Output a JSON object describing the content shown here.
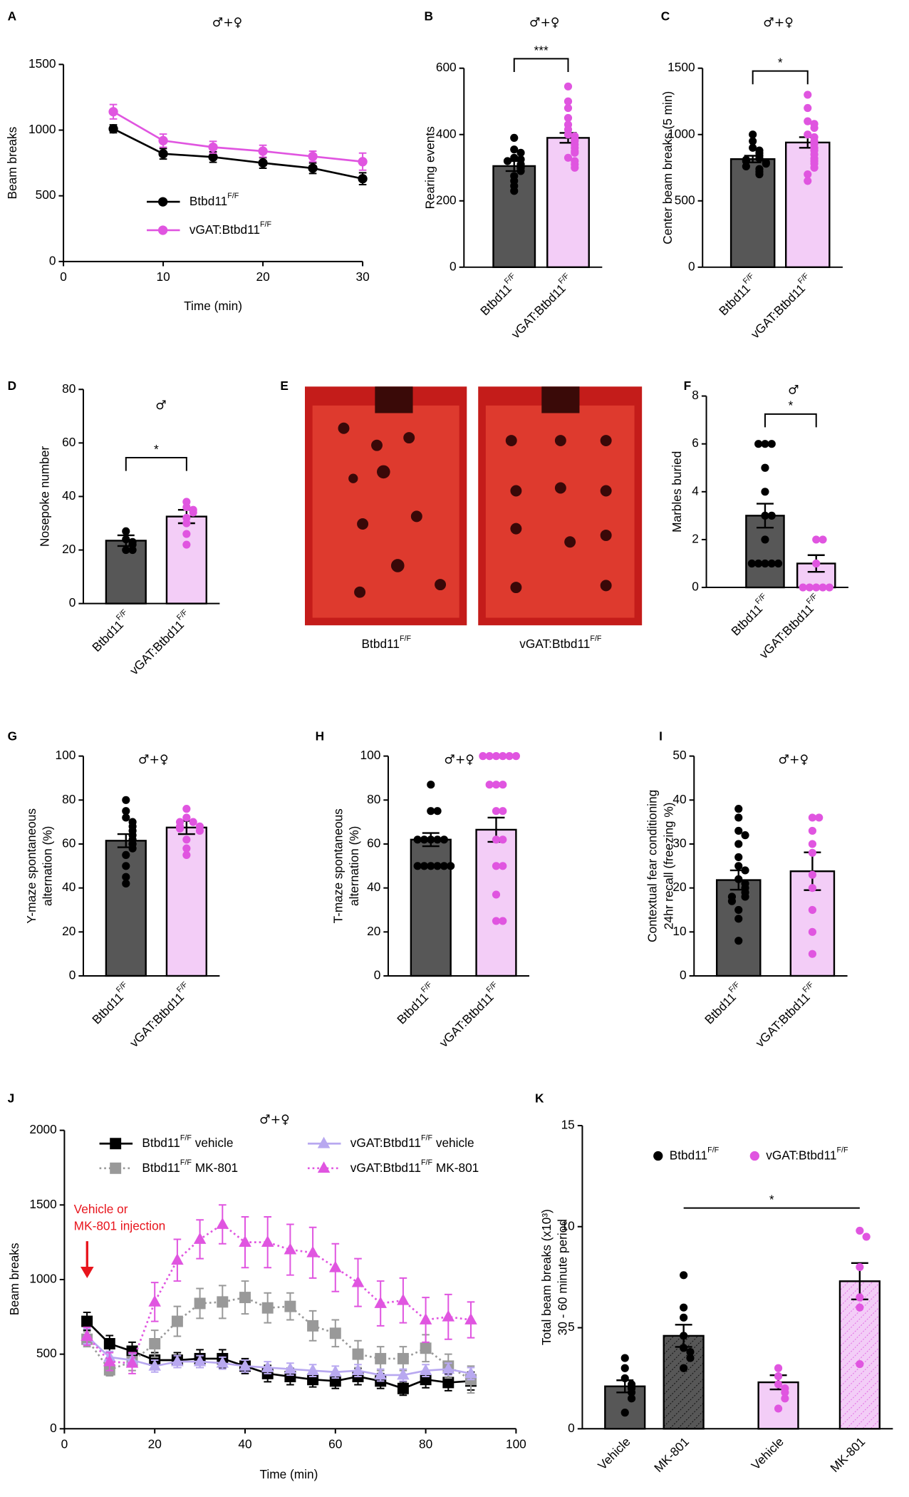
{
  "chart_data": [
    {
      "type": "line",
      "panel": "A",
      "sex": "♂+♀",
      "x_label": "Time (min)",
      "y_label": "Beam breaks",
      "x": [
        5,
        10,
        15,
        20,
        25,
        30
      ],
      "xlim": [
        0,
        30
      ],
      "xticks": [
        0,
        10,
        20,
        30
      ],
      "ylim": [
        0,
        1500
      ],
      "yticks": [
        0,
        500,
        1000,
        1500
      ],
      "series": [
        {
          "name": {
            "text": "Btbd11",
            "sup": "F/F"
          },
          "color": "#000000",
          "marker": "circle",
          "linestyle": "solid",
          "values": [
            1010,
            820,
            795,
            750,
            710,
            630
          ],
          "errors": [
            30,
            40,
            40,
            40,
            40,
            45
          ]
        },
        {
          "name": {
            "text": "vGAT:Btbd11",
            "sup": "F/F"
          },
          "color": "#e055e0",
          "marker": "circle",
          "linestyle": "solid",
          "values": [
            1140,
            920,
            870,
            840,
            800,
            760
          ],
          "errors": [
            55,
            50,
            45,
            45,
            40,
            65
          ]
        }
      ]
    },
    {
      "type": "bar",
      "panel": "B",
      "sex": "♂+♀",
      "y_label": "Rearing events",
      "categories": [
        {
          "text": "Btbd11",
          "sup": "F/F"
        },
        {
          "text": "vGAT:Btbd11",
          "sup": "F/F"
        }
      ],
      "values": [
        305,
        390
      ],
      "errors": [
        15,
        15
      ],
      "colors": [
        "#575757",
        "#f3cdf7"
      ],
      "point_colors": [
        "#000000",
        "#e055e0"
      ],
      "points": [
        [
          390,
          355,
          345,
          330,
          325,
          320,
          310,
          300,
          290,
          275,
          260,
          245,
          230
        ],
        [
          545,
          500,
          480,
          450,
          430,
          415,
          400,
          395,
          385,
          380,
          370,
          360,
          350,
          345,
          330,
          320,
          310,
          300
        ]
      ],
      "ylim": [
        0,
        600
      ],
      "yticks": [
        0,
        200,
        400,
        600
      ],
      "significance": "***"
    },
    {
      "type": "bar",
      "panel": "C",
      "sex": "♂+♀",
      "y_label": "Center beam breaks (5 min)",
      "categories": [
        {
          "text": "Btbd11",
          "sup": "F/F"
        },
        {
          "text": "vGAT:Btbd11",
          "sup": "F/F"
        }
      ],
      "values": [
        815,
        940
      ],
      "errors": [
        25,
        40
      ],
      "colors": [
        "#575757",
        "#f3cdf7"
      ],
      "point_colors": [
        "#000000",
        "#e055e0"
      ],
      "points": [
        [
          1000,
          950,
          900,
          880,
          860,
          840,
          820,
          810,
          800,
          790,
          780,
          760,
          740,
          720,
          700
        ],
        [
          1300,
          1200,
          1100,
          1080,
          1050,
          1000,
          980,
          950,
          930,
          900,
          880,
          850,
          820,
          800,
          780,
          750,
          700,
          650
        ]
      ],
      "ylim": [
        0,
        1500
      ],
      "yticks": [
        0,
        500,
        1000,
        1500
      ],
      "significance": "*"
    },
    {
      "type": "bar",
      "panel": "D",
      "sex": "♂",
      "y_label": "Nosepoke number",
      "categories": [
        {
          "text": "Btbd11",
          "sup": "F/F"
        },
        {
          "text": "vGAT:Btbd11",
          "sup": "F/F"
        }
      ],
      "values": [
        23.5,
        32.5
      ],
      "errors": [
        2,
        2.5
      ],
      "colors": [
        "#575757",
        "#f3cdf7"
      ],
      "point_colors": [
        "#000000",
        "#e055e0"
      ],
      "points": [
        [
          27,
          24,
          23,
          22,
          20,
          20
        ],
        [
          38,
          36,
          35,
          34,
          32,
          30,
          26,
          22
        ]
      ],
      "ylim": [
        0,
        80
      ],
      "yticks": [
        0,
        20,
        40,
        60,
        80
      ],
      "significance": "*"
    },
    {
      "type": "image",
      "panel": "E",
      "captions": [
        {
          "text": "Btbd11",
          "sup": "F/F"
        },
        {
          "text": "vGAT:Btbd11",
          "sup": "F/F"
        }
      ]
    },
    {
      "type": "bar",
      "panel": "F",
      "sex": "♂",
      "y_label": "Marbles buried",
      "categories": [
        {
          "text": "Btbd11",
          "sup": "F/F"
        },
        {
          "text": "vGAT:Btbd11",
          "sup": "F/F"
        }
      ],
      "values": [
        3,
        1
      ],
      "errors": [
        0.5,
        0.35
      ],
      "colors": [
        "#575757",
        "#f3cdf7"
      ],
      "point_colors": [
        "#000000",
        "#e055e0"
      ],
      "points": [
        [
          6,
          6,
          6,
          5,
          4,
          3,
          3,
          2,
          1,
          1,
          1,
          1,
          1
        ],
        [
          2,
          2,
          1,
          0,
          0,
          0,
          0,
          0
        ]
      ],
      "ylim": [
        0,
        8
      ],
      "yticks": [
        0,
        2,
        4,
        6,
        8
      ],
      "significance": "*"
    },
    {
      "type": "bar",
      "panel": "G",
      "sex": "♂+♀",
      "y_label": [
        "Y-maze spontaneous",
        "alternation (%)"
      ],
      "categories": [
        {
          "text": "Btbd11",
          "sup": "F/F"
        },
        {
          "text": "vGAT:Btbd11",
          "sup": "F/F"
        }
      ],
      "values": [
        61.5,
        67.5
      ],
      "errors": [
        3,
        3
      ],
      "colors": [
        "#575757",
        "#f3cdf7"
      ],
      "point_colors": [
        "#000000",
        "#e055e0"
      ],
      "points": [
        [
          80,
          75,
          72,
          70,
          68,
          66,
          64,
          62,
          60,
          58,
          55,
          50,
          45,
          42
        ],
        [
          76,
          72,
          70,
          70,
          68,
          68,
          67,
          66,
          62,
          58,
          55
        ]
      ],
      "ylim": [
        0,
        100
      ],
      "yticks": [
        0,
        20,
        40,
        60,
        80,
        100
      ]
    },
    {
      "type": "bar",
      "panel": "H",
      "sex": "♂+♀",
      "y_label": [
        "T-maze spontaneous",
        "alternation (%)"
      ],
      "categories": [
        {
          "text": "Btbd11",
          "sup": "F/F"
        },
        {
          "text": "vGAT:Btbd11",
          "sup": "F/F"
        }
      ],
      "values": [
        62,
        66.5
      ],
      "errors": [
        3,
        5.5
      ],
      "colors": [
        "#575757",
        "#f3cdf7"
      ],
      "point_colors": [
        "#000000",
        "#e055e0"
      ],
      "points": [
        [
          87,
          75,
          75,
          62,
          62,
          62,
          62,
          62,
          50,
          50,
          50,
          50,
          50,
          50
        ],
        [
          100,
          100,
          100,
          100,
          100,
          100,
          87,
          87,
          87,
          75,
          75,
          62,
          62,
          50,
          50,
          37,
          25,
          25
        ]
      ],
      "ylim": [
        0,
        100
      ],
      "yticks": [
        0,
        20,
        40,
        60,
        80,
        100
      ]
    },
    {
      "type": "bar",
      "panel": "I",
      "sex": "♂+♀",
      "y_label": [
        "Contextual fear conditioning",
        "24hr recall (freezing %)"
      ],
      "categories": [
        {
          "text": "Btbd11",
          "sup": "F/F"
        },
        {
          "text": "vGAT:Btbd11",
          "sup": "F/F"
        }
      ],
      "values": [
        21.8,
        23.8
      ],
      "errors": [
        2.2,
        4.3
      ],
      "colors": [
        "#575757",
        "#f3cdf7"
      ],
      "point_colors": [
        "#000000",
        "#e055e0"
      ],
      "points": [
        [
          38,
          36,
          33,
          32,
          30,
          27,
          25,
          24,
          22,
          21,
          20,
          19,
          18,
          18,
          17,
          15,
          13,
          8
        ],
        [
          36,
          36,
          33,
          30,
          28,
          23,
          20,
          15,
          10,
          5
        ]
      ],
      "ylim": [
        0,
        50
      ],
      "yticks": [
        0,
        10,
        20,
        30,
        40,
        50
      ]
    },
    {
      "type": "line",
      "panel": "J",
      "sex": "♂+♀",
      "x_label": "Time (min)",
      "y_label": "Beam breaks",
      "annotation": [
        "Vehicle or",
        "MK-801 injection"
      ],
      "annotation_color": "#e8141c",
      "x": [
        5,
        10,
        15,
        20,
        25,
        30,
        35,
        40,
        45,
        50,
        55,
        60,
        65,
        70,
        75,
        80,
        85,
        90
      ],
      "xlim": [
        0,
        100
      ],
      "xticks": [
        0,
        20,
        40,
        60,
        80,
        100
      ],
      "ylim": [
        0,
        2000
      ],
      "yticks": [
        0,
        500,
        1000,
        1500,
        2000
      ],
      "series": [
        {
          "name": {
            "text": "Btbd11",
            "sup": "F/F",
            "after": " vehicle"
          },
          "color": "#000000",
          "marker": "square",
          "linestyle": "solid",
          "values": [
            720,
            570,
            520,
            460,
            460,
            470,
            470,
            420,
            370,
            350,
            330,
            320,
            350,
            320,
            270,
            330,
            310,
            320
          ],
          "errors": [
            60,
            55,
            60,
            50,
            50,
            60,
            60,
            50,
            55,
            55,
            50,
            50,
            55,
            50,
            45,
            55,
            55,
            60
          ]
        },
        {
          "name": {
            "text": "Btbd11",
            "sup": "F/F",
            "after": " MK-801"
          },
          "color": "#999999",
          "marker": "square",
          "linestyle": "dotted",
          "values": [
            600,
            395,
            450,
            570,
            720,
            840,
            850,
            880,
            810,
            820,
            690,
            640,
            500,
            470,
            470,
            540,
            420,
            330
          ],
          "errors": [
            50,
            40,
            60,
            90,
            100,
            100,
            110,
            110,
            100,
            90,
            100,
            90,
            90,
            80,
            80,
            90,
            80,
            90
          ]
        },
        {
          "name": {
            "text": "vGAT:Btbd11",
            "sup": "F/F",
            "after": " vehicle"
          },
          "color": "#b8a8f0",
          "marker": "triangle",
          "linestyle": "solid",
          "values": [
            620,
            480,
            460,
            420,
            450,
            450,
            440,
            420,
            410,
            400,
            390,
            380,
            390,
            360,
            360,
            390,
            400,
            370
          ],
          "errors": [
            50,
            40,
            40,
            40,
            40,
            40,
            40,
            40,
            40,
            40,
            40,
            40,
            40,
            40,
            40,
            40,
            40,
            40
          ]
        },
        {
          "name": {
            "text": "vGAT:Btbd11",
            "sup": "F/F",
            "after": " MK-801"
          },
          "color": "#e055e0",
          "marker": "triangle",
          "linestyle": "dotted",
          "values": [
            620,
            450,
            440,
            850,
            1130,
            1270,
            1370,
            1250,
            1250,
            1200,
            1180,
            1080,
            980,
            840,
            860,
            730,
            750,
            730
          ],
          "errors": [
            60,
            60,
            70,
            130,
            140,
            130,
            130,
            170,
            170,
            170,
            170,
            160,
            160,
            150,
            150,
            150,
            150,
            120
          ]
        }
      ]
    },
    {
      "type": "bar",
      "panel": "K",
      "y_label": [
        "Total beam breaks (x10³)",
        "30 - 60 minute period"
      ],
      "categories": [
        "Vehicle",
        "MK-801"
      ],
      "hatch": [
        false,
        true
      ],
      "ylim": [
        0,
        15
      ],
      "yticks": [
        0,
        5,
        10,
        15
      ],
      "significance": "*",
      "series": [
        {
          "name": {
            "text": "Btbd11",
            "sup": "F/F"
          },
          "color": "#575757",
          "point_color": "#000000",
          "values": [
            2.1,
            4.6
          ],
          "errors": [
            0.3,
            0.55
          ],
          "points": [
            [
              3.5,
              3.0,
              2.5,
              2.2,
              2.0,
              1.8,
              1.5,
              0.8
            ],
            [
              7.6,
              6.0,
              5.5,
              4.6,
              4.0,
              3.8,
              3.5,
              3.0
            ]
          ]
        },
        {
          "name": {
            "text": "vGAT:Btbd11",
            "sup": "F/F"
          },
          "color": "#f3cdf7",
          "point_color": "#e055e0",
          "values": [
            2.3,
            7.3
          ],
          "errors": [
            0.35,
            0.9
          ],
          "points": [
            [
              3.0,
              2.6,
              2.2,
              2.0,
              1.8,
              1.5,
              1.0
            ],
            [
              9.8,
              9.5,
              8.0,
              6.5,
              6.0,
              3.2
            ]
          ]
        }
      ]
    }
  ]
}
